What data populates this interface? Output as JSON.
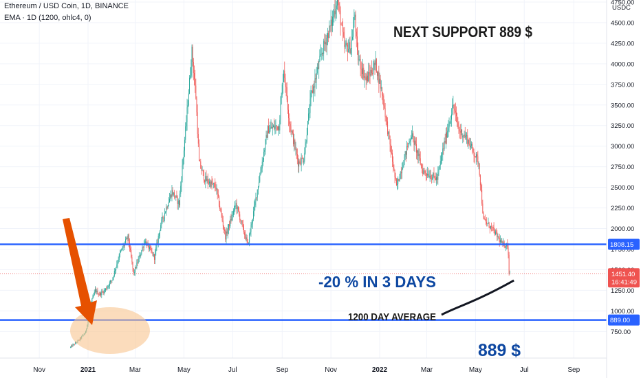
{
  "header": {
    "symbol_line": "Ethereum / USD Coin, 1D, BINANCE",
    "indicator_line": "EMA · 1D (1200, ohlc4, 0)"
  },
  "annotations": {
    "next_support": "NEXT SUPPORT 889 $",
    "drop": "-20 % IN 3 DAYS",
    "ema_label": "1200 DAY AVERAGE",
    "support_value": "889 $"
  },
  "price_scale": {
    "currency": "USDC",
    "last_price_label": "1451.40",
    "countdown_label": "16:41:49",
    "level_1_label": "1808.15",
    "level_2_label": "889.00"
  },
  "colors": {
    "up": "#26a69a",
    "down": "#ef5350",
    "level_line": "#2962ff",
    "annotation_text": "#0d47a1",
    "arrow": "#e65100",
    "highlight_ellipse": "#f8c48f",
    "ema_line": "#131722",
    "label_text": "#1a1a1a"
  },
  "chart_data": {
    "type": "candlestick",
    "title": "Ethereum / USD Coin, 1D, BINANCE",
    "y_axis": {
      "ticks": [
        750,
        1000,
        1250,
        1500,
        1750,
        2000,
        2250,
        2500,
        2750,
        3000,
        3250,
        3500,
        3750,
        4000,
        4250,
        4500,
        4750
      ],
      "tick_labels": [
        "750.00",
        "1000.00",
        "1250.00",
        "1500.00",
        "1750.00",
        "2000.00",
        "2250.00",
        "2500.00",
        "2750.00",
        "3000.00",
        "3250.00",
        "3500.00",
        "3750.00",
        "4000.00",
        "4250.00",
        "4500.00",
        "4750.00"
      ],
      "ylim": [
        650,
        4900
      ]
    },
    "x_axis": {
      "tick_labels": [
        "Nov",
        "2021",
        "Mar",
        "May",
        "Jul",
        "Sep",
        "Nov",
        "2022",
        "Mar",
        "May",
        "Jul",
        "Sep"
      ],
      "tick_dates": [
        "2020-11-01",
        "2021-01-01",
        "2021-03-01",
        "2021-05-01",
        "2021-07-01",
        "2021-09-01",
        "2021-11-01",
        "2022-01-01",
        "2022-03-01",
        "2022-05-01",
        "2022-07-01",
        "2022-09-01"
      ],
      "xlim": [
        "2020-10-08",
        "2022-10-10"
      ]
    },
    "price_path": [
      [
        "2020-12-10",
        560
      ],
      [
        "2020-12-20",
        640
      ],
      [
        "2020-12-29",
        740
      ],
      [
        "2021-01-05",
        1100
      ],
      [
        "2021-01-10",
        1250
      ],
      [
        "2021-01-15",
        1200
      ],
      [
        "2021-01-22",
        1250
      ],
      [
        "2021-01-31",
        1380
      ],
      [
        "2021-02-10",
        1700
      ],
      [
        "2021-02-20",
        1900
      ],
      [
        "2021-02-27",
        1450
      ],
      [
        "2021-03-13",
        1850
      ],
      [
        "2021-03-25",
        1650
      ],
      [
        "2021-04-02",
        2050
      ],
      [
        "2021-04-16",
        2450
      ],
      [
        "2021-04-25",
        2300
      ],
      [
        "2021-05-04",
        3300
      ],
      [
        "2021-05-11",
        4150
      ],
      [
        "2021-05-16",
        3600
      ],
      [
        "2021-05-20",
        2800
      ],
      [
        "2021-05-27",
        2600
      ],
      [
        "2021-06-10",
        2500
      ],
      [
        "2021-06-22",
        1900
      ],
      [
        "2021-07-05",
        2300
      ],
      [
        "2021-07-20",
        1800
      ],
      [
        "2021-08-05",
        2700
      ],
      [
        "2021-08-14",
        3200
      ],
      [
        "2021-08-28",
        3250
      ],
      [
        "2021-09-03",
        3950
      ],
      [
        "2021-09-10",
        3300
      ],
      [
        "2021-09-21",
        2800
      ],
      [
        "2021-09-28",
        2850
      ],
      [
        "2021-10-07",
        3600
      ],
      [
        "2021-10-21",
        4150
      ],
      [
        "2021-11-02",
        4500
      ],
      [
        "2021-11-09",
        4800
      ],
      [
        "2021-11-18",
        4200
      ],
      [
        "2021-11-26",
        4200
      ],
      [
        "2021-12-01",
        4600
      ],
      [
        "2021-12-04",
        4100
      ],
      [
        "2021-12-15",
        3800
      ],
      [
        "2021-12-27",
        4000
      ],
      [
        "2022-01-05",
        3600
      ],
      [
        "2022-01-11",
        3200
      ],
      [
        "2022-01-22",
        2500
      ],
      [
        "2022-02-05",
        3000
      ],
      [
        "2022-02-10",
        3150
      ],
      [
        "2022-02-24",
        2700
      ],
      [
        "2022-03-14",
        2600
      ],
      [
        "2022-03-20",
        2900
      ],
      [
        "2022-04-03",
        3500
      ],
      [
        "2022-04-10",
        3200
      ],
      [
        "2022-04-20",
        3100
      ],
      [
        "2022-05-05",
        2800
      ],
      [
        "2022-05-11",
        2100
      ],
      [
        "2022-05-22",
        2000
      ],
      [
        "2022-06-04",
        1800
      ],
      [
        "2022-06-10",
        1800
      ],
      [
        "2022-06-13",
        1451
      ]
    ],
    "ema_1200": [
      [
        "2022-06-01",
        1330
      ],
      [
        "2022-06-18",
        1370
      ]
    ],
    "horizontal_levels": [
      1808.15,
      889.0
    ],
    "last_price": 1451.4
  }
}
